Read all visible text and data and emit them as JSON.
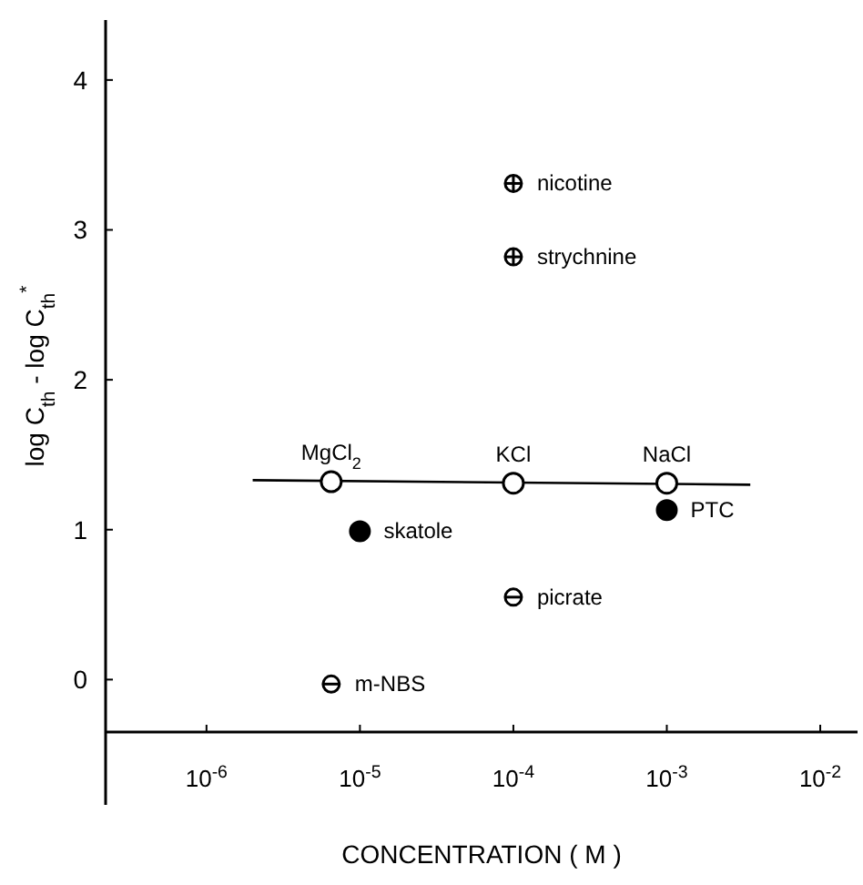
{
  "chart_data": {
    "type": "scatter",
    "xlabel": "CONCENTRATION ( M )",
    "ylabel": "log C$_{th}$ - log C$_{th}$$^{*}$",
    "log": "x",
    "xlim": [
      2.2e-07,
      0.0175
    ],
    "xticks": [
      {
        "value": 1e-06,
        "label": "10$^{-6}$"
      },
      {
        "value": 1e-05,
        "label": "10$^{-5}$"
      },
      {
        "value": 0.0001,
        "label": "10$^{-4}$"
      },
      {
        "value": 0.001,
        "label": "10$^{-3}$"
      },
      {
        "value": 0.01,
        "label": "10$^{-2}$"
      }
    ],
    "ylim": [
      -0.35,
      4.4
    ],
    "yticks": [
      0,
      1,
      2,
      3,
      4
    ],
    "series": [
      {
        "type": "line",
        "color": "#000000",
        "marker": "none",
        "x": [
          2e-06,
          0.0035
        ],
        "values": [
          1.33,
          1.3
        ]
      },
      {
        "color": "#000000",
        "marker": "circle-open",
        "x": [
          6.5e-06,
          0.0001,
          0.001
        ],
        "values": [
          1.32,
          1.31,
          1.31
        ]
      },
      {
        "color": "#000000",
        "marker": "circle",
        "x": [
          1e-05,
          0.001
        ],
        "values": [
          0.99,
          1.13
        ]
      },
      {
        "color": "#000000",
        "marker": "circle-minus",
        "x": [
          0.0001,
          6.5e-06
        ],
        "values": [
          0.55,
          -0.03
        ]
      },
      {
        "color": "#000000",
        "marker": "circle-plus",
        "x": [
          0.0001,
          0.0001
        ],
        "values": [
          3.31,
          2.82
        ]
      }
    ],
    "annotations": [
      {
        "text": "MgCl$_{2}$",
        "x": 6.5e-06,
        "y": 1.32
      },
      {
        "text": "KCl",
        "x": 0.0001,
        "y": 1.31
      },
      {
        "text": "NaCl",
        "x": 0.001,
        "y": 1.31
      },
      {
        "text": "skatole",
        "x": 1e-05,
        "y": 0.99
      },
      {
        "text": "PTC",
        "x": 0.001,
        "y": 1.13
      },
      {
        "text": "picrate",
        "x": 0.0001,
        "y": 0.55
      },
      {
        "text": "m-NBS",
        "x": 6.5e-06,
        "y": -0.03
      },
      {
        "text": "nicotine",
        "x": 0.0001,
        "y": 3.31
      },
      {
        "text": "strychnine",
        "x": 0.0001,
        "y": 2.82
      }
    ]
  }
}
